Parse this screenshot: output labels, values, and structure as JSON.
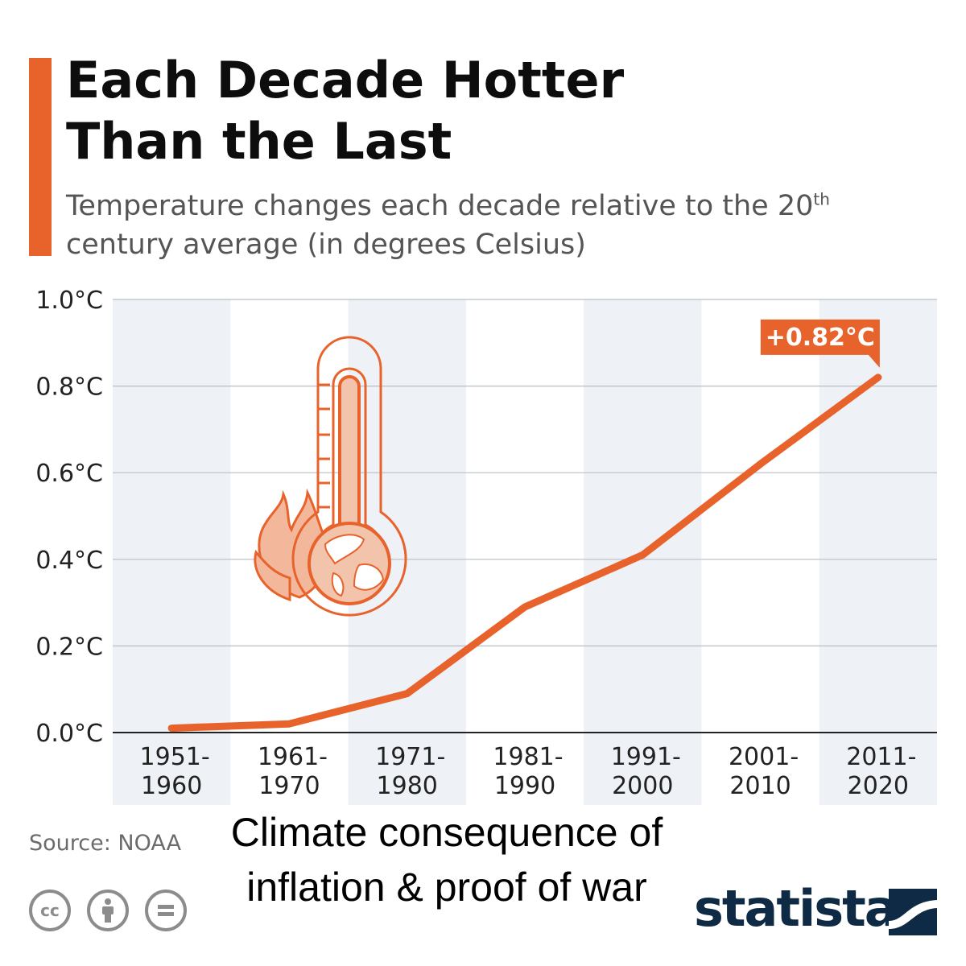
{
  "header": {
    "title_line1": "Each Decade Hotter",
    "title_line2": "Than the Last",
    "subtitle_before": "Temperature changes each decade relative to the 20",
    "subtitle_sup": "th",
    "subtitle_after": " century average (in degrees Celsius)"
  },
  "chart_data": {
    "type": "line",
    "title": "Each Decade Hotter Than the Last",
    "subtitle": "Temperature changes each decade relative to the 20th century average (in degrees Celsius)",
    "categories": [
      "1951-1960",
      "1961-1970",
      "1971-1980",
      "1981-1990",
      "1991-2000",
      "2001-2010",
      "2011-2020"
    ],
    "category_lines": [
      [
        "1951-",
        "1960"
      ],
      [
        "1961-",
        "1970"
      ],
      [
        "1971-",
        "1980"
      ],
      [
        "1981-",
        "1990"
      ],
      [
        "1991-",
        "2000"
      ],
      [
        "2001-",
        "2010"
      ],
      [
        "2011-",
        "2020"
      ]
    ],
    "values": [
      0.01,
      0.02,
      0.09,
      0.29,
      0.41,
      0.62,
      0.82
    ],
    "ylim": [
      0.0,
      1.0
    ],
    "yticks": [
      0.0,
      0.2,
      0.4,
      0.6,
      0.8,
      1.0
    ],
    "ytick_labels": [
      "0.0°C",
      "0.2°C",
      "0.4°C",
      "0.6°C",
      "0.8°C",
      "1.0°C"
    ],
    "annotation": "+0.82°C",
    "grid": true,
    "line_color": "#e8632b",
    "band_color": "#eef1f6"
  },
  "footer": {
    "source": "Source: NOAA",
    "overlay_caption": "Climate consequence of inflation & proof of war",
    "logo_text": "statista",
    "license_icons": [
      "cc-icon",
      "attribution-icon",
      "no-derivatives-icon"
    ]
  },
  "colors": {
    "accent": "#e8632b",
    "logo": "#0f2a45",
    "grid": "#b9bec6"
  }
}
